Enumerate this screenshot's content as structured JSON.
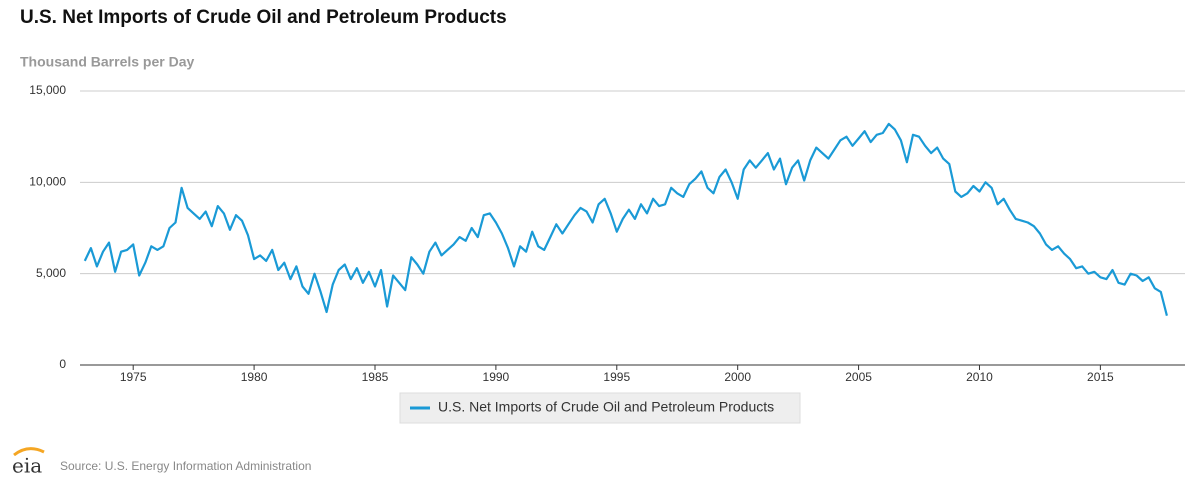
{
  "chart_data": {
    "type": "line",
    "title": "U.S. Net Imports of Crude Oil and Petroleum Products",
    "y_label": "Thousand Barrels per Day",
    "source": "Source: U.S. Energy Information Administration",
    "logo_text": "eia",
    "x": [
      1973,
      1973.25,
      1973.5,
      1973.75,
      1974,
      1974.25,
      1974.5,
      1974.75,
      1975,
      1975.25,
      1975.5,
      1975.75,
      1976,
      1976.25,
      1976.5,
      1976.75,
      1977,
      1977.25,
      1977.5,
      1977.75,
      1978,
      1978.25,
      1978.5,
      1978.75,
      1979,
      1979.25,
      1979.5,
      1979.75,
      1980,
      1980.25,
      1980.5,
      1980.75,
      1981,
      1981.25,
      1981.5,
      1981.75,
      1982,
      1982.25,
      1982.5,
      1982.75,
      1983,
      1983.25,
      1983.5,
      1983.75,
      1984,
      1984.25,
      1984.5,
      1984.75,
      1985,
      1985.25,
      1985.5,
      1985.75,
      1986,
      1986.25,
      1986.5,
      1986.75,
      1987,
      1987.25,
      1987.5,
      1987.75,
      1988,
      1988.25,
      1988.5,
      1988.75,
      1989,
      1989.25,
      1989.5,
      1989.75,
      1990,
      1990.25,
      1990.5,
      1990.75,
      1991,
      1991.25,
      1991.5,
      1991.75,
      1992,
      1992.25,
      1992.5,
      1992.75,
      1993,
      1993.25,
      1993.5,
      1993.75,
      1994,
      1994.25,
      1994.5,
      1994.75,
      1995,
      1995.25,
      1995.5,
      1995.75,
      1996,
      1996.25,
      1996.5,
      1996.75,
      1997,
      1997.25,
      1997.5,
      1997.75,
      1998,
      1998.25,
      1998.5,
      1998.75,
      1999,
      1999.25,
      1999.5,
      1999.75,
      2000,
      2000.25,
      2000.5,
      2000.75,
      2001,
      2001.25,
      2001.5,
      2001.75,
      2002,
      2002.25,
      2002.5,
      2002.75,
      2003,
      2003.25,
      2003.5,
      2003.75,
      2004,
      2004.25,
      2004.5,
      2004.75,
      2005,
      2005.25,
      2005.5,
      2005.75,
      2006,
      2006.25,
      2006.5,
      2006.75,
      2007,
      2007.25,
      2007.5,
      2007.75,
      2008,
      2008.25,
      2008.5,
      2008.75,
      2009,
      2009.25,
      2009.5,
      2009.75,
      2010,
      2010.25,
      2010.5,
      2010.75,
      2011,
      2011.25,
      2011.5,
      2011.75,
      2012,
      2012.25,
      2012.5,
      2012.75,
      2013,
      2013.25,
      2013.5,
      2013.75,
      2014,
      2014.25,
      2014.5,
      2014.75,
      2015,
      2015.25,
      2015.5,
      2015.75,
      2016,
      2016.25,
      2016.5,
      2016.75,
      2017,
      2017.25,
      2017.5,
      2017.75
    ],
    "series": [
      {
        "name": "U.S. Net Imports of Crude Oil and Petroleum Products",
        "color": "#1a9ad6",
        "values": [
          5700,
          6400,
          5400,
          6200,
          6700,
          5100,
          6200,
          6300,
          6600,
          4900,
          5600,
          6500,
          6300,
          6500,
          7500,
          7800,
          9700,
          8600,
          8300,
          8000,
          8400,
          7600,
          8700,
          8300,
          7400,
          8200,
          7900,
          7100,
          5800,
          6000,
          5700,
          6300,
          5200,
          5600,
          4700,
          5400,
          4300,
          3900,
          5000,
          4000,
          2900,
          4400,
          5200,
          5500,
          4700,
          5300,
          4500,
          5100,
          4300,
          5200,
          3200,
          4900,
          4500,
          4100,
          5900,
          5500,
          5000,
          6200,
          6700,
          6000,
          6300,
          6600,
          7000,
          6800,
          7500,
          7000,
          8200,
          8300,
          7800,
          7200,
          6400,
          5400,
          6500,
          6200,
          7300,
          6500,
          6300,
          7000,
          7700,
          7200,
          7700,
          8200,
          8600,
          8400,
          7800,
          8800,
          9100,
          8300,
          7300,
          8000,
          8500,
          8000,
          8800,
          8300,
          9100,
          8700,
          8800,
          9700,
          9400,
          9200,
          9900,
          10200,
          10600,
          9700,
          9400,
          10300,
          10700,
          10000,
          9100,
          10700,
          11200,
          10800,
          11200,
          11600,
          10700,
          11300,
          9900,
          10800,
          11200,
          10100,
          11200,
          11900,
          11600,
          11300,
          11800,
          12300,
          12500,
          12000,
          12400,
          12800,
          12200,
          12600,
          12700,
          13200,
          12900,
          12300,
          11100,
          12600,
          12500,
          12000,
          11600,
          11900,
          11300,
          11000,
          9500,
          9200,
          9400,
          9800,
          9500,
          10000,
          9700,
          8800,
          9100,
          8500,
          8000,
          7900,
          7800,
          7600,
          7200,
          6600,
          6300,
          6500,
          6100,
          5800,
          5300,
          5400,
          5000,
          5100,
          4800,
          4700,
          5200,
          4500,
          4400,
          5000,
          4900,
          4600,
          4800,
          4200,
          4000,
          2700
        ]
      }
    ],
    "xlim": [
      1972.8,
      2018.5
    ],
    "ylim": [
      0,
      15000
    ],
    "xticks": [
      1975,
      1980,
      1985,
      1990,
      1995,
      2000,
      2005,
      2010,
      2015
    ],
    "yticks": [
      0,
      {
        "value": 5000,
        "label": "5,000"
      },
      {
        "value": 10000,
        "label": "10,000"
      },
      {
        "value": 15000,
        "label": "15,000"
      }
    ],
    "grid": true
  }
}
